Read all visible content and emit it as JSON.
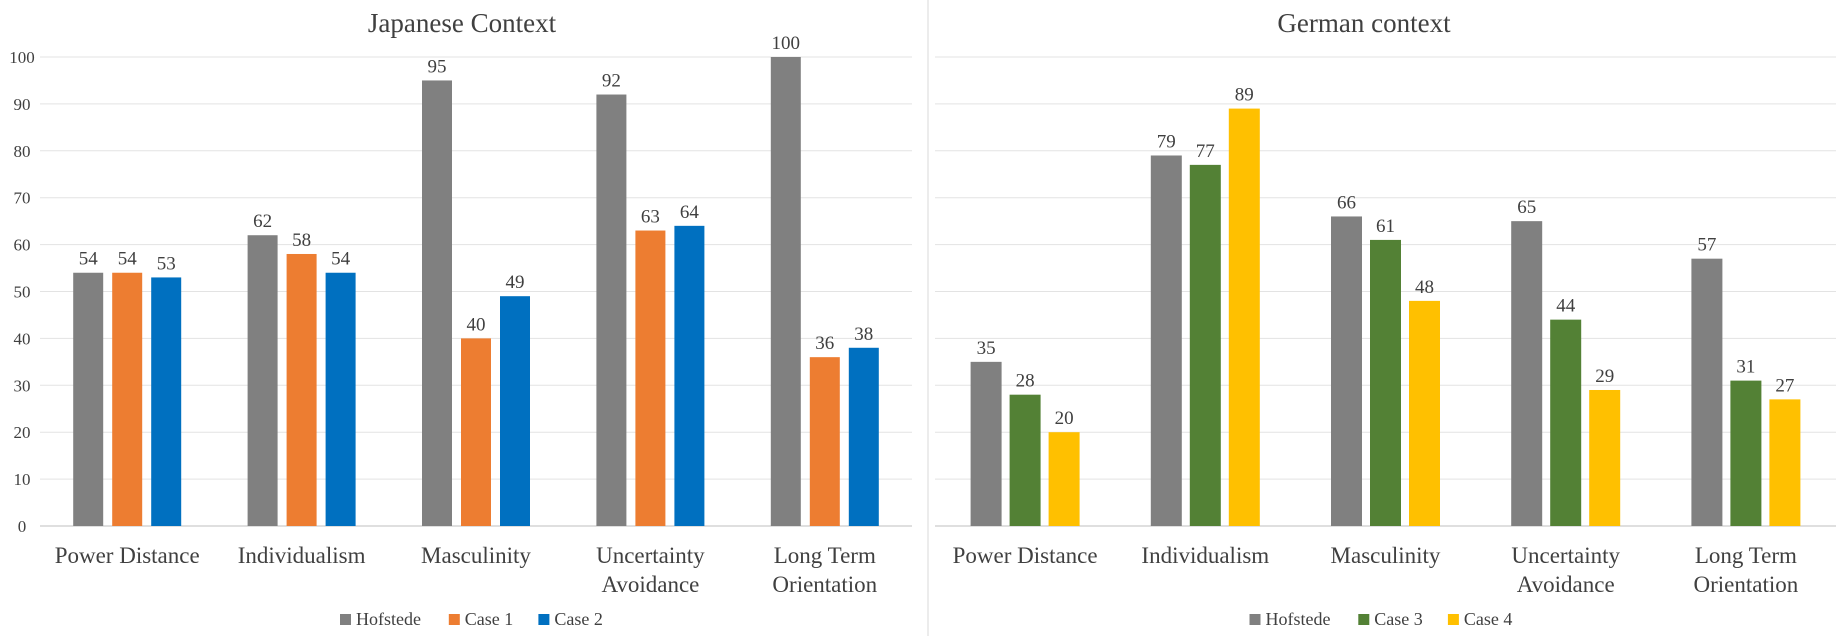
{
  "chart_data": [
    {
      "type": "bar",
      "title": "Japanese Context",
      "categories": [
        "Power Distance",
        "Individualism",
        "Masculinity",
        "Uncertainty Avoidance",
        "Long Term Orientation"
      ],
      "category_lines": [
        [
          "Power Distance"
        ],
        [
          "Individualism"
        ],
        [
          "Masculinity"
        ],
        [
          "Uncertainty",
          "Avoidance"
        ],
        [
          "Long Term",
          "Orientation"
        ]
      ],
      "series": [
        {
          "name": "Hofstede",
          "color": "#808080",
          "values": [
            54,
            62,
            95,
            92,
            100
          ]
        },
        {
          "name": "Case 1",
          "color": "#ED7D31",
          "values": [
            54,
            58,
            40,
            63,
            36
          ]
        },
        {
          "name": "Case 2",
          "color": "#0070C0",
          "values": [
            53,
            54,
            49,
            64,
            38
          ]
        }
      ],
      "yticks": [
        0,
        10,
        20,
        30,
        40,
        50,
        60,
        70,
        80,
        90,
        100
      ],
      "ylim": [
        0,
        100
      ],
      "xlabel": "",
      "ylabel": "",
      "grid": true,
      "legend": "bottom"
    },
    {
      "type": "bar",
      "title": "German context",
      "categories": [
        "Power Distance",
        "Individualism",
        "Masculinity",
        "Uncertainty Avoidance",
        "Long Term Orientation"
      ],
      "category_lines": [
        [
          "Power Distance"
        ],
        [
          "Individualism"
        ],
        [
          "Masculinity"
        ],
        [
          "Uncertainty",
          "Avoidance"
        ],
        [
          "Long Term",
          "Orientation"
        ]
      ],
      "series": [
        {
          "name": "Hofstede",
          "color": "#808080",
          "values": [
            35,
            79,
            66,
            65,
            57
          ]
        },
        {
          "name": "Case 3",
          "color": "#538135",
          "values": [
            28,
            77,
            61,
            44,
            31
          ]
        },
        {
          "name": "Case 4",
          "color": "#FFC000",
          "values": [
            20,
            89,
            48,
            29,
            27
          ]
        }
      ],
      "ylim": [
        0,
        100
      ],
      "xlabel": "",
      "ylabel": "",
      "grid": true,
      "legend": "bottom"
    }
  ]
}
